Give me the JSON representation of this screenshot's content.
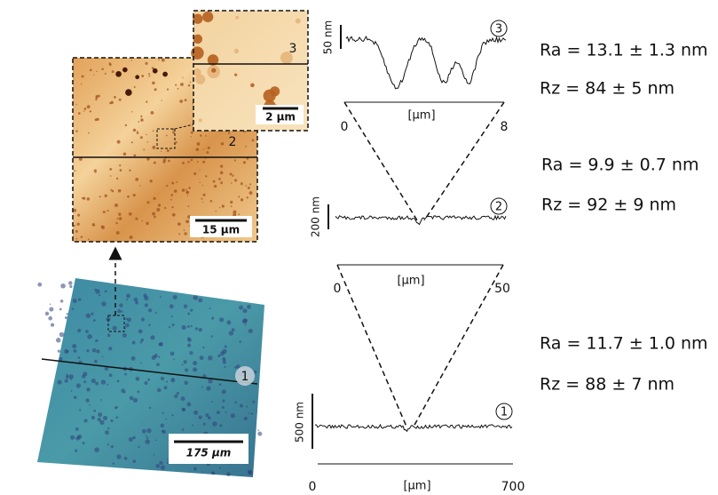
{
  "images": {
    "inset": {
      "label": "3",
      "scale_bar": "2 µm"
    },
    "zoom": {
      "label": "2",
      "scale_bar": "15 µm"
    },
    "overview": {
      "label": "1",
      "scale_bar": "175 µm"
    }
  },
  "profiles": [
    {
      "label": "3",
      "height_scale": "50 nm",
      "axis_label": "[µm]",
      "x_start": 0,
      "x_end": 8
    },
    {
      "label": "2",
      "height_scale": "200 nm",
      "axis_label": "[µm]",
      "x_start": 0,
      "x_end": 50
    },
    {
      "label": "1",
      "height_scale": "500 nm",
      "axis_label": "[µm]",
      "x_start": 0,
      "x_end": 700
    }
  ],
  "roughness": [
    {
      "ra": "Ra = 13.1 ± 1.3 nm",
      "rz": "Rz = 84 ± 5 nm"
    },
    {
      "ra": "Ra = 9.9 ± 0.7 nm",
      "rz": "Rz = 92 ± 9 nm"
    },
    {
      "ra": "Ra = 11.7 ± 1.0 nm",
      "rz": "Rz = 88 ± 7 nm"
    }
  ]
}
